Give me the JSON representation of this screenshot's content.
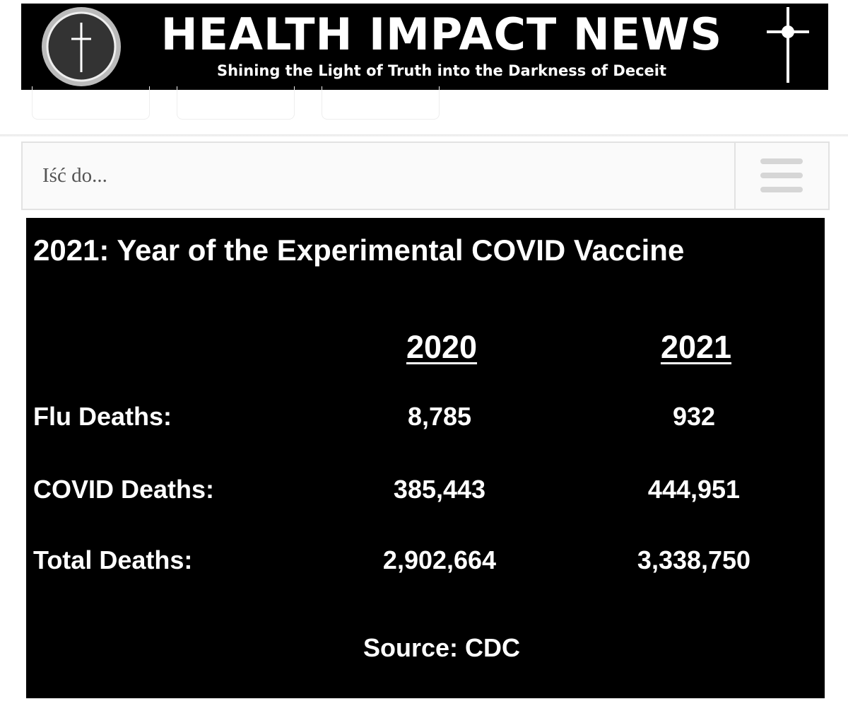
{
  "header": {
    "title": "HEALTH IMPACT NEWS",
    "tagline": "Shining the Light of Truth into the Darkness of Deceit"
  },
  "nav": {
    "placeholder": "Iść do..."
  },
  "table": {
    "title": "2021: Year of the Experimental COVID Vaccine",
    "columns": [
      "2020",
      "2021"
    ],
    "rows": [
      [
        "Flu Deaths:",
        "8,785",
        "932"
      ],
      [
        "COVID Deaths:",
        "385,443",
        "444,951"
      ],
      [
        "Total Deaths:",
        "2,902,664",
        "3,338,750"
      ]
    ],
    "source": "Source: CDC"
  }
}
